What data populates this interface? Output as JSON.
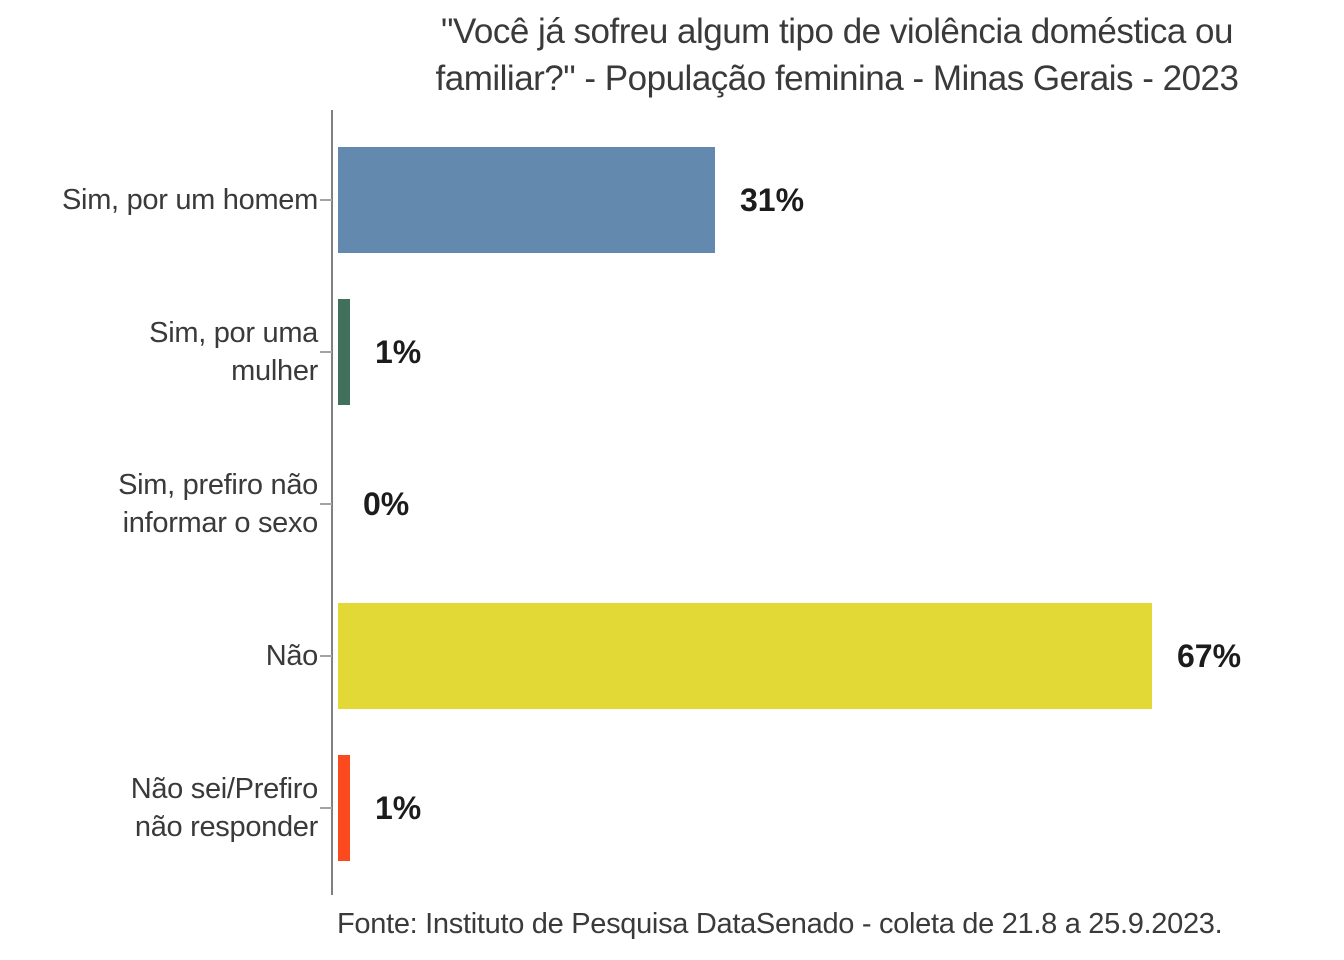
{
  "header": {
    "title_line1": "\"Você já sofreu algum tipo de violência doméstica ou",
    "title_line2": "familiar?\" - População feminina - Minas Gerais - 2023"
  },
  "footer": {
    "source": "Fonte: Instituto de Pesquisa DataSenado - coleta de 21.8 a 25.9.2023."
  },
  "chart_data": {
    "type": "bar",
    "orientation": "horizontal",
    "title": "\"Você já sofreu algum tipo de violência doméstica ou familiar?\" - População feminina - Minas Gerais - 2023",
    "categories": [
      "Sim, por um homem",
      "Sim, por uma mulher",
      "Sim, prefiro não informar o sexo",
      "Não",
      "Não sei/Prefiro não responder"
    ],
    "category_label_lines": [
      [
        "Sim, por um homem"
      ],
      [
        "Sim, por uma",
        "mulher"
      ],
      [
        "Sim, prefiro não",
        "informar o sexo"
      ],
      [
        "Não"
      ],
      [
        "Não sei/Prefiro",
        "não responder"
      ]
    ],
    "values": [
      31,
      1,
      0,
      67,
      1
    ],
    "value_labels": [
      "31%",
      "1%",
      "0%",
      "67%",
      "1%"
    ],
    "unit": "percent",
    "bar_colors": [
      "#6389ae",
      "#41705c",
      null,
      "#e2d936",
      "#fb4a1e"
    ],
    "xlabel": "",
    "ylabel": "",
    "xlim": [
      0,
      80
    ],
    "grid": false,
    "legend": false,
    "value_axis_ticks_visible": false,
    "axis_color": "#808080",
    "tick_color": "#a3a3a3",
    "title_color": "#3a3a3a",
    "category_label_color": "#3a3a3a",
    "value_label_color": "#1c1c1c",
    "background_color": "#ffffff",
    "source": "Fonte: Instituto de Pesquisa DataSenado - coleta de 21.8 a 25.9.2023."
  }
}
